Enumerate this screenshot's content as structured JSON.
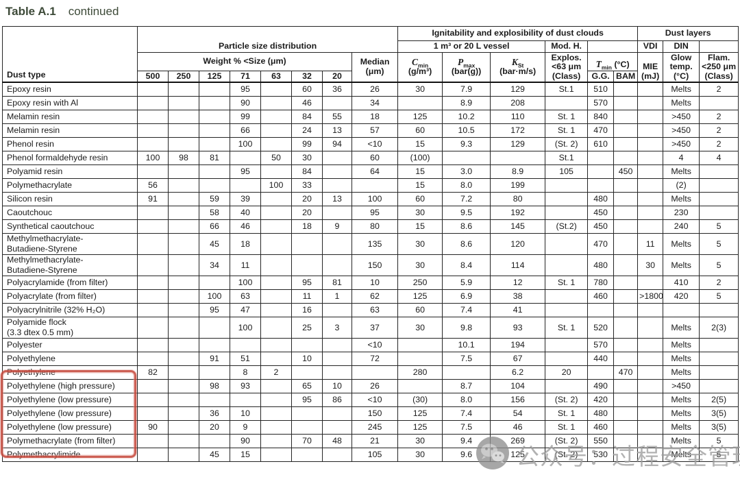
{
  "title": {
    "bold": "Table A.1",
    "rest": "continued"
  },
  "colors": {
    "highlight_box": "#c64a3e",
    "title_text": "#3d4a38",
    "watermark": "#9d9d9d",
    "table_border": "#242424"
  },
  "watermark": {
    "logo": "wechat-logo-icon",
    "text": "公众号：过程安全管理"
  },
  "header": {
    "dust_type": "Dust type",
    "psd": "Particle size distribution",
    "weight": "Weight % <Size (μm)",
    "sizes": [
      "500",
      "250",
      "125",
      "71",
      "63",
      "32",
      "20"
    ],
    "median": [
      "Median",
      "(μm)"
    ],
    "ignit": "Ignitability and explosibility of dust clouds",
    "dust_layers": "Dust layers",
    "vessel": "1 m³ or 20 L vessel",
    "cmin": {
      "sym": "C",
      "sub": "min",
      "unit": "(g/m³)"
    },
    "pmax": {
      "sym": "P",
      "sub": "max",
      "unit": "(bar(g))"
    },
    "kst": {
      "sym": "K",
      "sub": "St",
      "unit": "(bar·m/s)"
    },
    "modh": "Mod. H.",
    "explos": [
      "Explos.",
      "<63 μm",
      "(Class)"
    ],
    "tmin": {
      "sym": "T",
      "sub": "min",
      "unit": "(°C)"
    },
    "gg": "G.G.",
    "bam": "BAM",
    "vdi": "VDI",
    "din": "DIN",
    "mie": [
      "MIE",
      "(mJ)"
    ],
    "glow": [
      "Glow",
      "temp.",
      "(°C)"
    ],
    "flam": [
      "Flam.",
      "<250 μm",
      "(Class)"
    ]
  },
  "rows": [
    {
      "name": "Epoxy resin",
      "s71": "95",
      "s32": "60",
      "s20": "36",
      "median": "26",
      "cmin": "30",
      "pmax": "7.9",
      "kst": "129",
      "cls": "St.1",
      "gg": "510",
      "glow": "Melts",
      "flam": "2"
    },
    {
      "name": "Epoxy resin with Al",
      "s71": "90",
      "s32": "46",
      "median": "34",
      "pmax": "8.9",
      "kst": "208",
      "gg": "570",
      "glow": "Melts"
    },
    {
      "name": "Melamin resin",
      "s71": "99",
      "s32": "84",
      "s20": "55",
      "median": "18",
      "cmin": "125",
      "pmax": "10.2",
      "kst": "110",
      "cls": "St. 1",
      "gg": "840",
      "glow": ">450",
      "flam": "2"
    },
    {
      "name": "Melamin resin",
      "s71": "66",
      "s32": "24",
      "s20": "13",
      "median": "57",
      "cmin": "60",
      "pmax": "10.5",
      "kst": "172",
      "cls": "St. 1",
      "gg": "470",
      "glow": ">450",
      "flam": "2"
    },
    {
      "name": "Phenol resin",
      "s71": "100",
      "s32": "99",
      "s20": "94",
      "median": "<10",
      "cmin": "15",
      "pmax": "9.3",
      "kst": "129",
      "cls": "(St. 2)",
      "gg": "610",
      "glow": ">450",
      "flam": "2"
    },
    {
      "name": "Phenol formaldehyde resin",
      "s500": "100",
      "s250": "98",
      "s125": "81",
      "s63": "50",
      "s32": "30",
      "median": "60",
      "cmin": "(100)",
      "cls": "St.1",
      "glow": "4",
      "flam": "4"
    },
    {
      "name": "Polyamid resin",
      "s71": "95",
      "s32": "84",
      "median": "64",
      "cmin": "15",
      "pmax": "3.0",
      "kst": "8.9",
      "cls": "105",
      "bam": "450",
      "glow": "Melts"
    },
    {
      "name": "Polymethacrylate",
      "s500": "56",
      "s63": "100",
      "s32": "33",
      "cmin": "15",
      "pmax": "8.0",
      "kst": "199",
      "glow": "(2)"
    },
    {
      "name": "Silicon resin",
      "s500": "91",
      "s125": "59",
      "s71": "39",
      "s32": "20",
      "s20": "13",
      "median": "100",
      "cmin": "60",
      "pmax": "7.2",
      "kst": "80",
      "gg": "480",
      "glow": "Melts"
    },
    {
      "name": "Caoutchouc",
      "s125": "58",
      "s71": "40",
      "s32": "20",
      "median": "95",
      "cmin": "30",
      "pmax": "9.5",
      "kst": "192",
      "gg": "450",
      "glow": "230"
    },
    {
      "name": "Synthetical caoutchouc",
      "s125": "66",
      "s71": "46",
      "s32": "18",
      "s20": "9",
      "median": "80",
      "cmin": "15",
      "pmax": "8.6",
      "kst": "145",
      "cls": "(St.2)",
      "gg": "450",
      "glow": "240",
      "flam": "5"
    },
    {
      "name": "Methylmethacrylate-\nButadiene-Styrene",
      "s125": "45",
      "s71": "18",
      "median": "135",
      "cmin": "30",
      "pmax": "8.6",
      "kst": "120",
      "gg": "470",
      "mie": "11",
      "glow": "Melts",
      "flam": "5"
    },
    {
      "name": "Methylmethacrylate-\nButadiene-Styrene",
      "s125": "34",
      "s71": "11",
      "median": "150",
      "cmin": "30",
      "pmax": "8.4",
      "kst": "114",
      "gg": "480",
      "mie": "30",
      "glow": "Melts",
      "flam": "5"
    },
    {
      "name": "Polyacrylamide (from filter)",
      "s71": "100",
      "s32": "95",
      "s20": "81",
      "median": "10",
      "cmin": "250",
      "pmax": "5.9",
      "kst": "12",
      "cls": "St. 1",
      "gg": "780",
      "glow": "410",
      "flam": "2"
    },
    {
      "name": "Polyacrylate (from filter)",
      "s125": "100",
      "s71": "63",
      "s32": "11",
      "s20": "1",
      "median": "62",
      "cmin": "125",
      "pmax": "6.9",
      "kst": "38",
      "gg": "460",
      "mie": ">1800",
      "glow": "420",
      "flam": "5"
    },
    {
      "name": "Polyacrylnitrile (32% H₂O)",
      "s125": "95",
      "s71": "47",
      "s32": "16",
      "median": "63",
      "cmin": "60",
      "pmax": "7.4",
      "kst": "41"
    },
    {
      "name": "Polyamide flock\n(3.3 dtex 0.5 mm)",
      "s71": "100",
      "s32": "25",
      "s20": "3",
      "median": "37",
      "cmin": "30",
      "pmax": "9.8",
      "kst": "93",
      "cls": "St. 1",
      "gg": "520",
      "glow": "Melts",
      "flam": "2(3)"
    },
    {
      "name": "Polyester",
      "median": "<10",
      "pmax": "10.1",
      "kst": "194",
      "gg": "570",
      "glow": "Melts"
    },
    {
      "name": "Polyethylene",
      "hl": true,
      "s125": "91",
      "s71": "51",
      "s32": "10",
      "median": "72",
      "pmax": "7.5",
      "kst": "67",
      "gg": "440",
      "glow": "Melts"
    },
    {
      "name": "Polyethylene",
      "hl": true,
      "s500": "82",
      "s71": "8",
      "s63": "2",
      "cmin": "280",
      "kst": "6.2",
      "cls": "20",
      "bam": "470",
      "glow": "Melts"
    },
    {
      "name": "Polyethylene (high pressure)",
      "hl": true,
      "s125": "98",
      "s71": "93",
      "s32": "65",
      "s20": "10",
      "median": "26",
      "pmax": "8.7",
      "kst": "104",
      "gg": "490",
      "glow": ">450"
    },
    {
      "name": "Polyethylene (low pressure)",
      "hl": true,
      "s32": "95",
      "s20": "86",
      "median": "<10",
      "cmin": "(30)",
      "pmax": "8.0",
      "kst": "156",
      "cls": "(St. 2)",
      "gg": "420",
      "glow": "Melts",
      "flam": "2(5)"
    },
    {
      "name": "Polyethylene (low pressure)",
      "hl": true,
      "s125": "36",
      "s71": "10",
      "median": "150",
      "cmin": "125",
      "pmax": "7.4",
      "kst": "54",
      "cls": "St. 1",
      "gg": "480",
      "glow": "Melts",
      "flam": "3(5)"
    },
    {
      "name": "Polyethylene (low pressure)",
      "hl": true,
      "s500": "90",
      "s125": "20",
      "s71": "9",
      "median": "245",
      "cmin": "125",
      "pmax": "7.5",
      "kst": "46",
      "cls": "St. 1",
      "gg": "460",
      "glow": "Melts",
      "flam": "3(5)"
    },
    {
      "name": "Polymethacrylate (from filter)",
      "s71": "90",
      "s32": "70",
      "s20": "48",
      "median": "21",
      "cmin": "30",
      "pmax": "9.4",
      "kst": "269",
      "cls": "(St. 2)",
      "gg": "550",
      "glow": "Melts",
      "flam": "5"
    },
    {
      "name": "Polymethacrylimide",
      "s125": "45",
      "s71": "15",
      "median": "105",
      "cmin": "30",
      "pmax": "9.6",
      "kst": "125",
      "cls": "(St. 2)",
      "gg": "530",
      "glow": "Melts",
      "flam": "5"
    }
  ]
}
